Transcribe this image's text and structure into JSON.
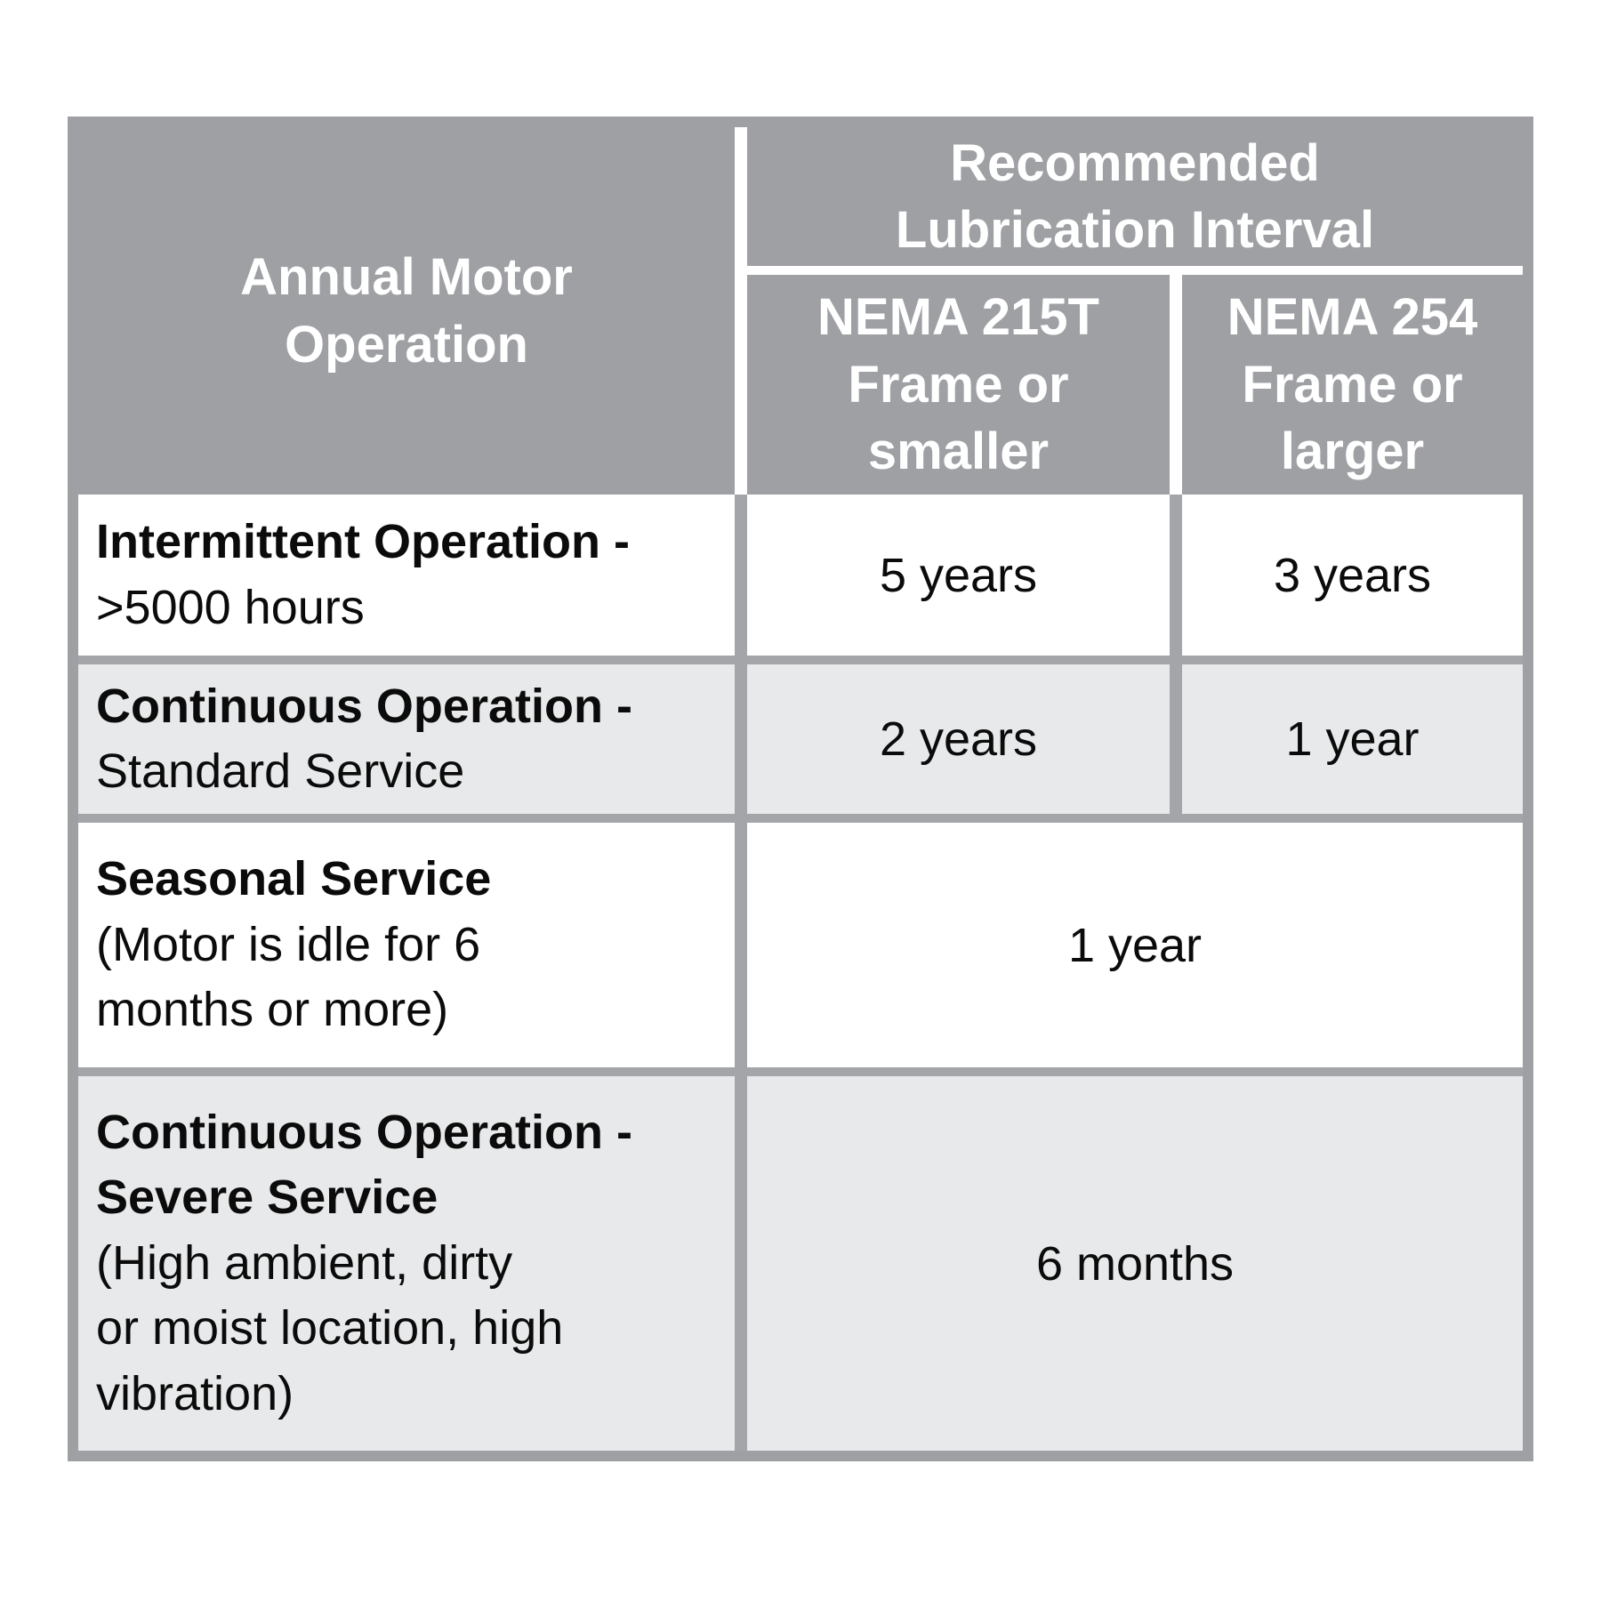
{
  "page": {
    "background": "#ffffff"
  },
  "colors": {
    "header_bg": "#9ea0a4",
    "header_text": "#ffffff",
    "body_border": "#a3a5a9",
    "row_bg_white": "#ffffff",
    "row_bg_alt": "#e8e9ea",
    "body_text": "#0b0b0b",
    "header_divider": "#ffffff"
  },
  "table": {
    "header": {
      "row_header": "Annual Motor\nOperation",
      "group": "Recommended\nLubrication Interval",
      "sub1": "NEMA 215T\nFrame or\nsmaller",
      "sub2": "NEMA 254\nFrame or\nlarger"
    },
    "rows": [
      {
        "bold": "Intermittent Operation -",
        "rest": ">5000 hours",
        "v1": "5 years",
        "v2": "3 years"
      },
      {
        "bold": "Continuous Operation -",
        "rest": "Standard Service",
        "v1": "2 years",
        "v2": "1 year"
      },
      {
        "bold": "Seasonal Service",
        "rest": "(Motor is idle for 6\nmonths or more)",
        "value": "1 year"
      },
      {
        "bold": "Continuous Operation -\nSevere Service",
        "rest": "(High ambient, dirty\nor moist location, high\nvibration)",
        "value": "6 months"
      }
    ]
  },
  "chart_data": {
    "type": "table",
    "title": "Recommended Lubrication Interval",
    "columns": [
      "Annual Motor Operation",
      "NEMA 215T Frame or smaller",
      "NEMA 254 Frame or larger"
    ],
    "column_group": {
      "label": "Recommended Lubrication Interval",
      "spans": [
        "NEMA 215T Frame or smaller",
        "NEMA 254 Frame or larger"
      ]
    },
    "rows": [
      [
        "Intermittent Operation - >5000 hours",
        "5 years",
        "3 years"
      ],
      [
        "Continuous Operation - Standard Service",
        "2 years",
        "1 year"
      ],
      [
        "Seasonal Service (Motor is idle for 6 months or more)",
        "1 year",
        "1 year"
      ],
      [
        "Continuous Operation - Severe Service (High ambient, dirty or moist location, high vibration)",
        "6 months",
        "6 months"
      ]
    ],
    "notes": "Rows 3 and 4 have a single interval value spanning both NEMA frame columns"
  }
}
